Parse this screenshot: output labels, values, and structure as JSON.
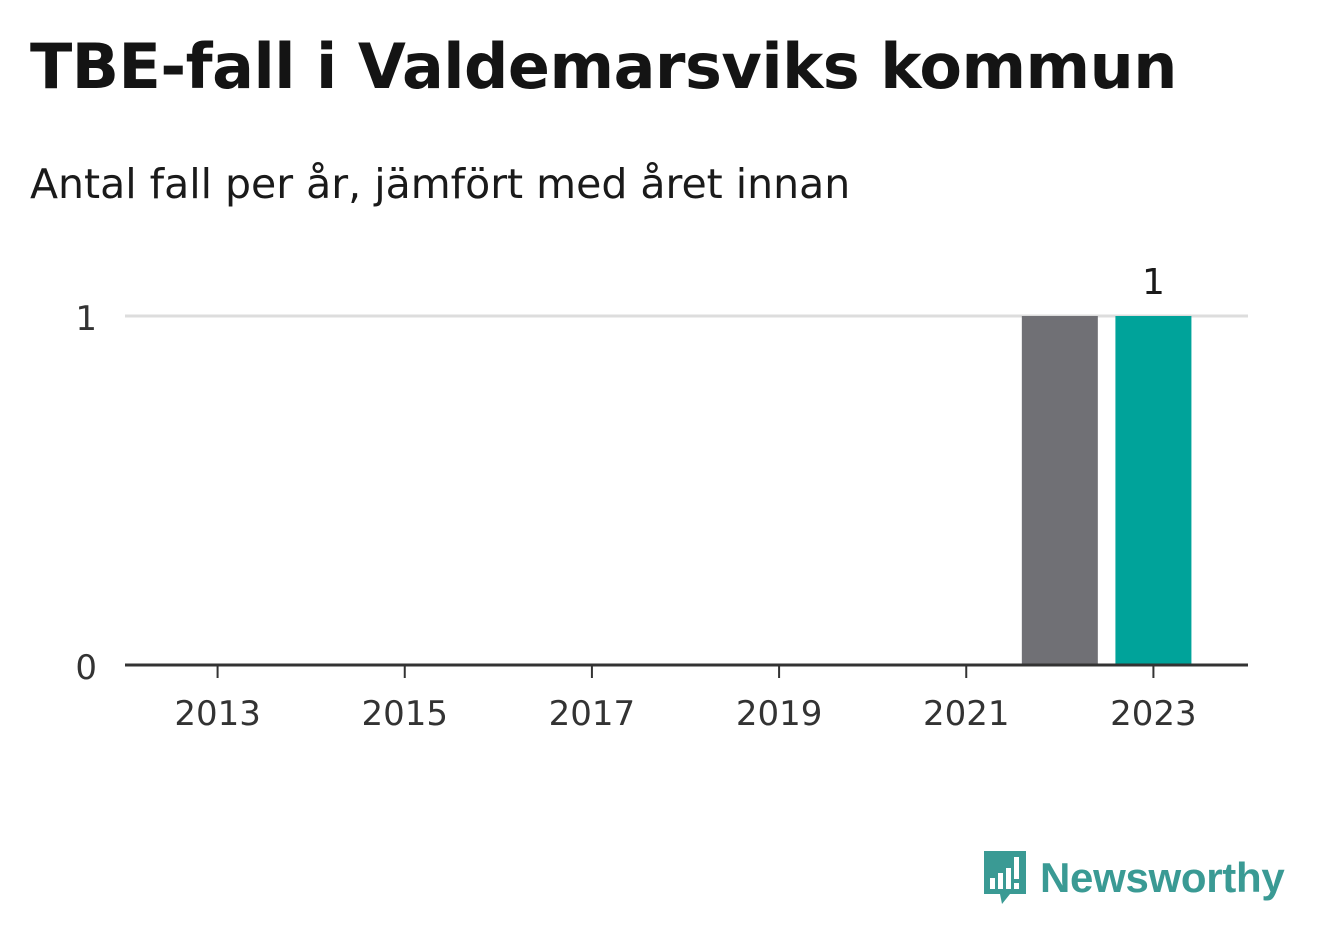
{
  "title": "TBE-fall i Valdemarsviks kommun",
  "subtitle": "Antal fall per år, jämfört med året innan",
  "brand": "Newsworthy",
  "colors": {
    "current": "#00a39a",
    "previous": "#707075",
    "grid": "#dddddd",
    "axis": "#333333",
    "brand": "#3a9a94"
  },
  "chart_data": {
    "type": "bar",
    "title": "TBE-fall i Valdemarsviks kommun",
    "subtitle": "Antal fall per år, jämfört med året innan",
    "xlabel": "",
    "ylabel": "",
    "ylim": [
      0,
      1
    ],
    "yticks": [
      "0",
      "1"
    ],
    "xticks": [
      "2013",
      "2015",
      "2017",
      "2019",
      "2021",
      "2023"
    ],
    "bars": [
      {
        "year": 2022,
        "value": 1,
        "kind": "previous"
      },
      {
        "year": 2023,
        "value": 1,
        "kind": "current",
        "label": "1"
      }
    ],
    "grid": true,
    "legend": "none"
  }
}
